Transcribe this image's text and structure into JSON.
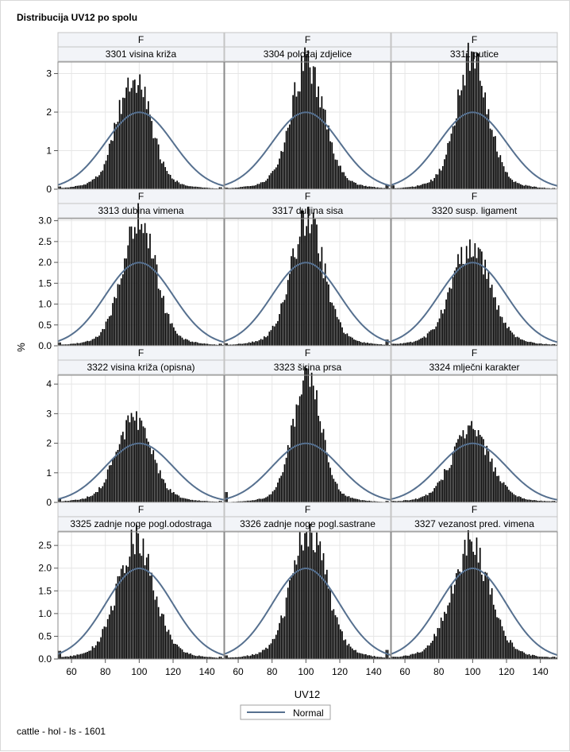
{
  "title": "Distribucija UV12 po spolu",
  "footnote": "cattle - hol - ls - 1601",
  "chart_data": {
    "type": "bar",
    "layout": "panel-grid",
    "xlabel": "UV12",
    "ylabel": "%",
    "xlim": [
      52,
      150
    ],
    "xticks": [
      60,
      80,
      100,
      120,
      140
    ],
    "grid": true,
    "legend": {
      "position": "bottom",
      "entries": [
        "Normal"
      ]
    },
    "normal_curve": {
      "mean": 100,
      "sd": 20,
      "color": "#56708f"
    },
    "bar_color": "#000000",
    "rows": [
      {
        "ylim": [
          0,
          3.3
        ],
        "yticks": [
          0,
          1,
          2,
          3
        ],
        "tick_labels": [
          "0",
          "1",
          "2",
          "3"
        ]
      },
      {
        "ylim": [
          0,
          3.05
        ],
        "yticks": [
          0,
          0.5,
          1,
          1.5,
          2,
          2.5,
          3
        ],
        "tick_labels": [
          "0.0",
          "0.5",
          "1.0",
          "1.5",
          "2.0",
          "2.5",
          "3.0"
        ]
      },
      {
        "ylim": [
          0,
          4.3
        ],
        "yticks": [
          0,
          1,
          2,
          3,
          4
        ],
        "tick_labels": [
          "0",
          "1",
          "2",
          "3",
          "4"
        ]
      },
      {
        "ylim": [
          0,
          2.8
        ],
        "yticks": [
          0,
          0.5,
          1,
          1.5,
          2,
          2.5
        ],
        "tick_labels": [
          "0.0",
          "0.5",
          "1.0",
          "1.5",
          "2.0",
          "2.5"
        ]
      }
    ],
    "panels": [
      {
        "sex": "F",
        "trait": "3301 visina križa",
        "peak": 2.75,
        "peak_x": 97,
        "sd": 9.5,
        "extra": [
          [
            53,
            0.07
          ],
          [
            148,
            0.05
          ]
        ]
      },
      {
        "sex": "F",
        "trait": "3304 položaj zdjelice",
        "peak": 3.05,
        "peak_x": 101,
        "sd": 9.5,
        "extra": [
          [
            53,
            0.04
          ],
          [
            148,
            0.12
          ]
        ]
      },
      {
        "sex": "F",
        "trait": "3311 putice",
        "peak": 3.25,
        "peak_x": 100,
        "sd": 9.0,
        "extra": [
          [
            53,
            0.1
          ],
          [
            148,
            0.03
          ]
        ]
      },
      {
        "sex": "F",
        "trait": "3313 dubina vimena",
        "peak": 2.85,
        "peak_x": 100,
        "sd": 9.5,
        "extra": [
          [
            53,
            0.08
          ],
          [
            148,
            0.05
          ]
        ]
      },
      {
        "sex": "F",
        "trait": "3317 duljina sisa",
        "peak": 2.85,
        "peak_x": 101,
        "sd": 9.5,
        "extra": [
          [
            53,
            0.06
          ],
          [
            148,
            0.15
          ]
        ]
      },
      {
        "sex": "F",
        "trait": "3320 susp. ligament",
        "peak": 2.25,
        "peak_x": 99,
        "sd": 11.0,
        "extra": [
          [
            53,
            0.05
          ],
          [
            148,
            0.04
          ]
        ]
      },
      {
        "sex": "F",
        "trait": "3322 visina križa (opisna)",
        "peak": 2.7,
        "peak_x": 97,
        "sd": 10.0,
        "extra": [
          [
            53,
            0.12
          ],
          [
            148,
            0.05
          ]
        ]
      },
      {
        "sex": "F",
        "trait": "3323 širina prsa",
        "peak": 4.1,
        "peak_x": 101,
        "sd": 8.0,
        "extra": [
          [
            53,
            0.35
          ],
          [
            148,
            0.05
          ]
        ]
      },
      {
        "sex": "F",
        "trait": "3324 mlječni karakter",
        "peak": 2.3,
        "peak_x": 99,
        "sd": 11.0,
        "extra": [
          [
            53,
            0.05
          ],
          [
            148,
            0.05
          ]
        ]
      },
      {
        "sex": "F",
        "trait": "3325 zadnje noge pogl.odostraga",
        "peak": 2.45,
        "peak_x": 98,
        "sd": 10.5,
        "extra": [
          [
            53,
            0.18
          ],
          [
            148,
            0.05
          ]
        ]
      },
      {
        "sex": "F",
        "trait": "3326 zadnje noge pogl.sastrane",
        "peak": 2.7,
        "peak_x": 102,
        "sd": 10.0,
        "extra": [
          [
            53,
            0.08
          ],
          [
            148,
            0.2
          ]
        ]
      },
      {
        "sex": "F",
        "trait": "3327 vezanost pred. vimena",
        "peak": 2.35,
        "peak_x": 99,
        "sd": 11.0,
        "extra": [
          [
            53,
            0.05
          ],
          [
            148,
            0.05
          ]
        ]
      }
    ]
  }
}
